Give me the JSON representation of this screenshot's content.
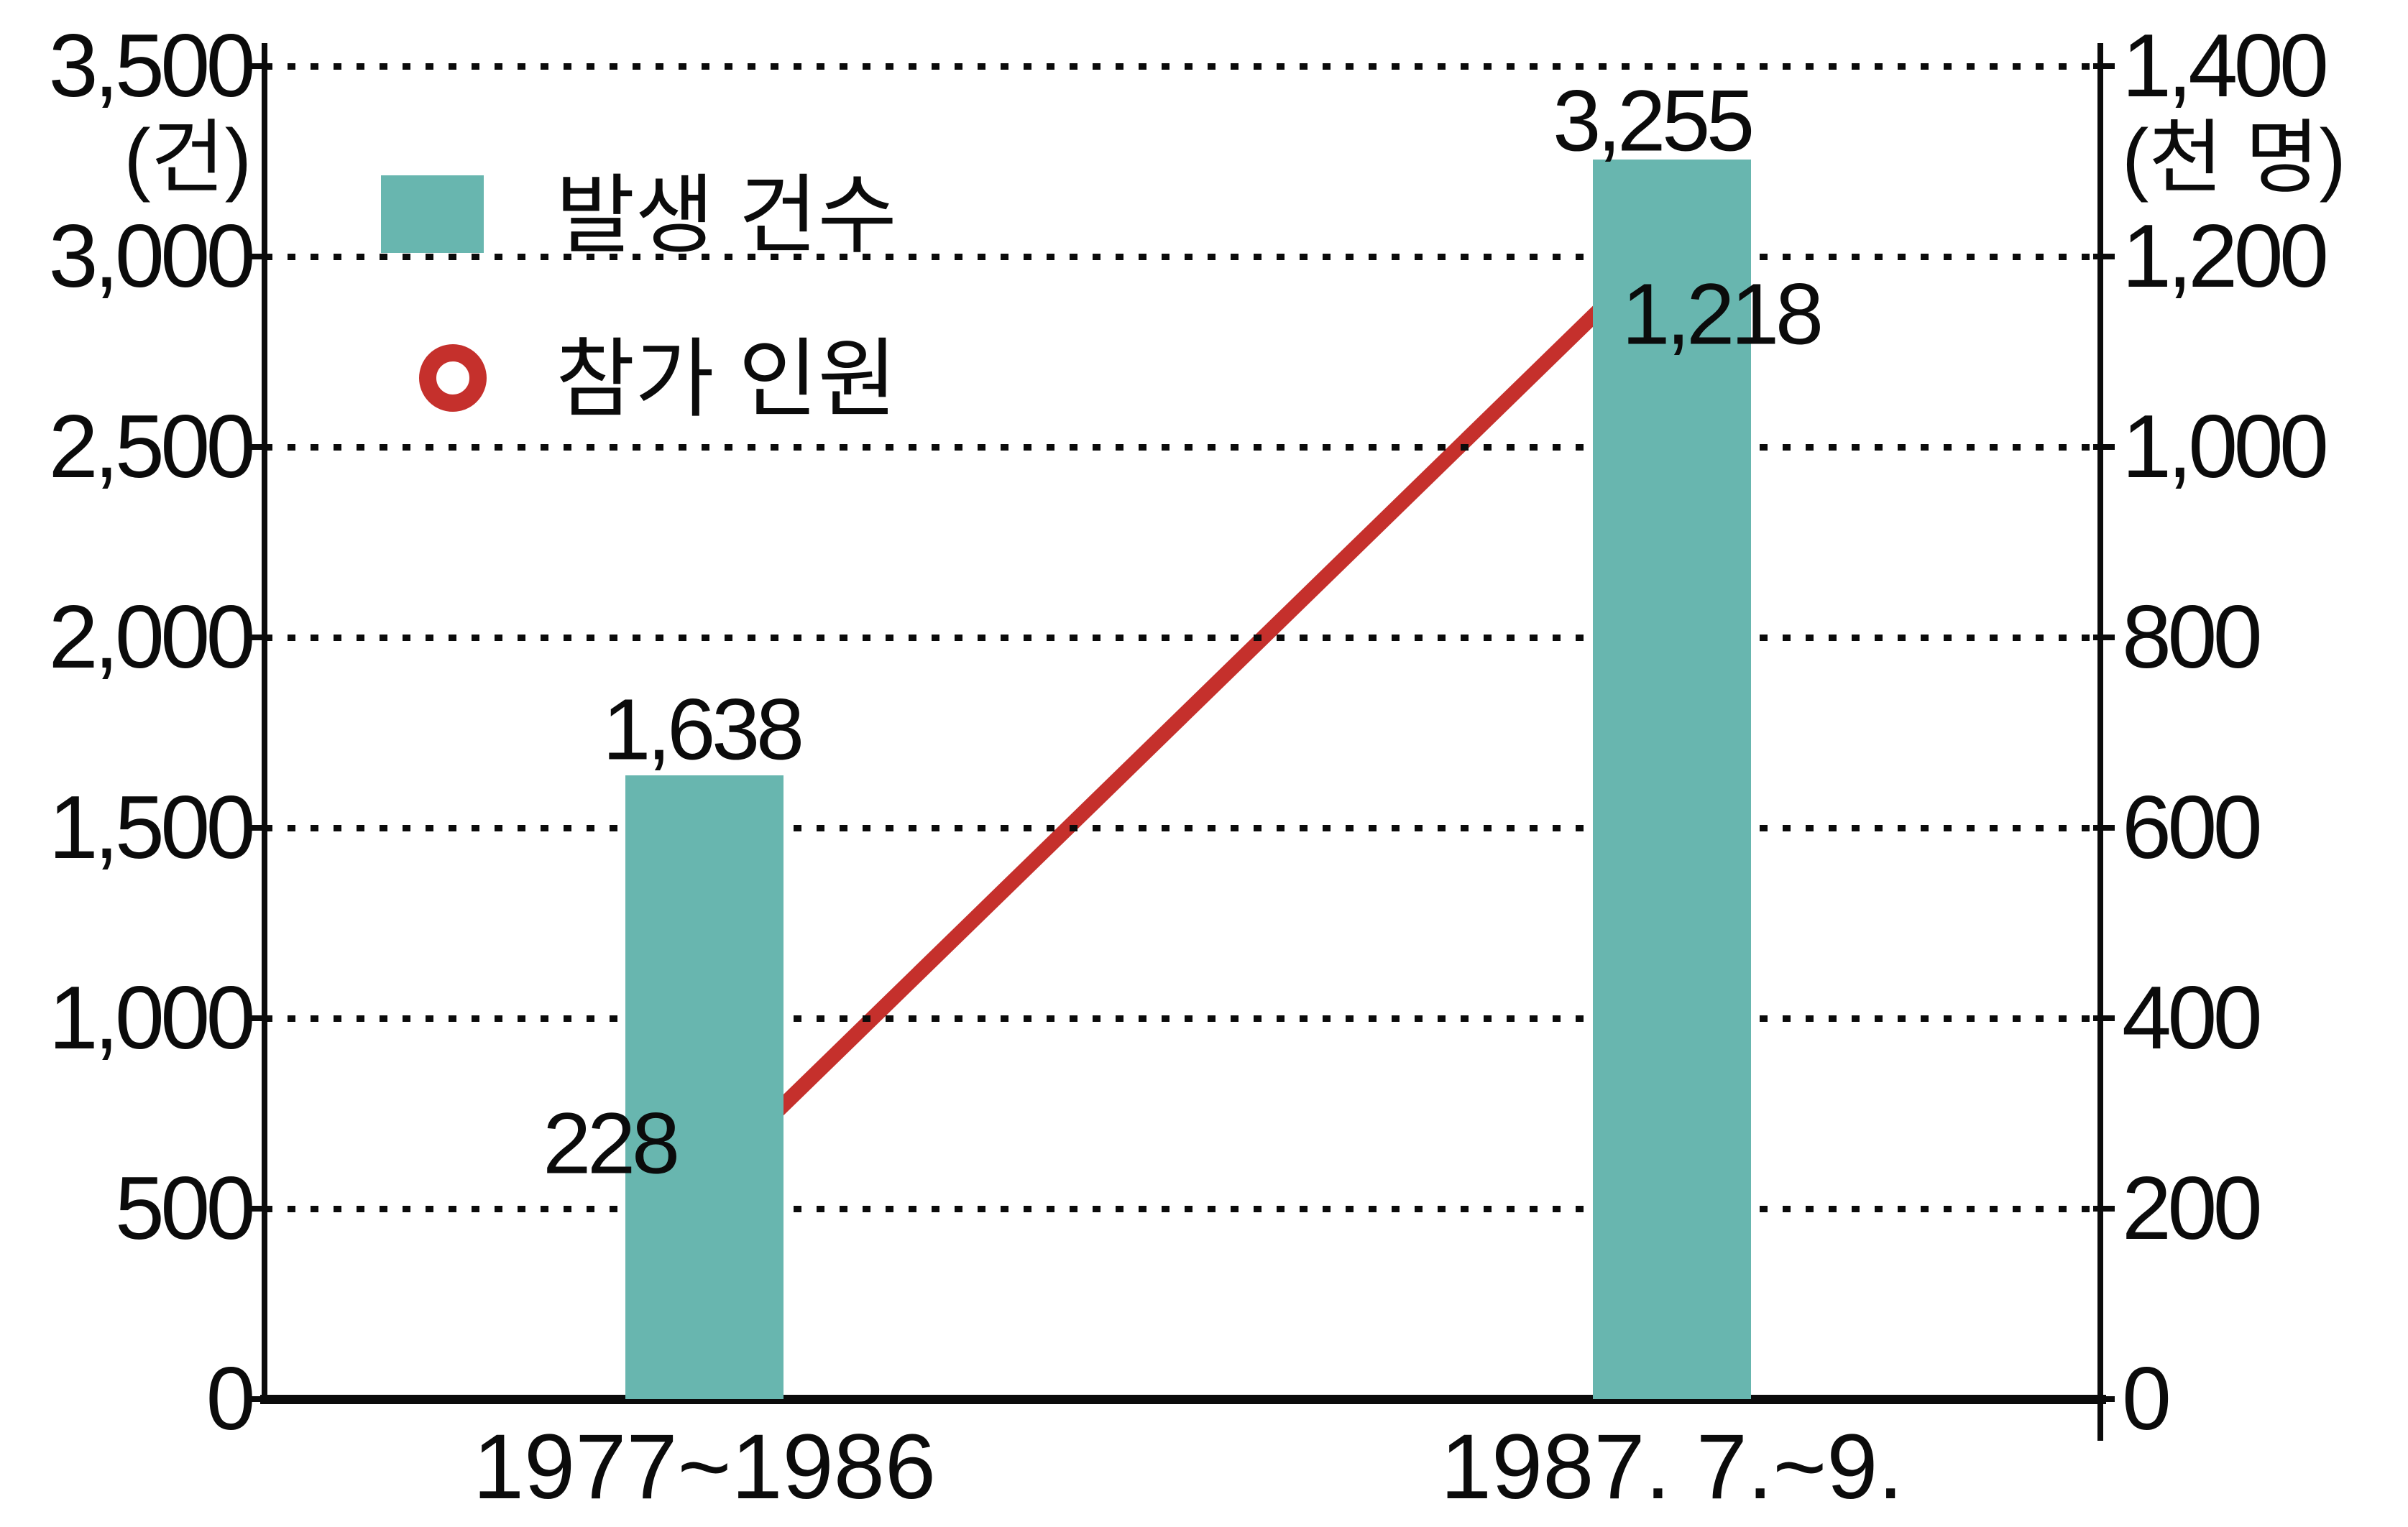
{
  "chart_data": {
    "type": "bar",
    "subtype": "bar-and-line-dual-axis",
    "categories": [
      "1977~1986",
      "1987. 7.~9."
    ],
    "series": [
      {
        "name": "발생 건수",
        "type": "bar",
        "axis": "left",
        "values": [
          1638,
          3255
        ],
        "data_labels": [
          "1,638",
          "3,255"
        ],
        "color": "#68b6af"
      },
      {
        "name": "참가 인원",
        "type": "line",
        "axis": "right",
        "values": [
          228,
          1218
        ],
        "data_labels": [
          "228",
          "1,218"
        ],
        "color": "#c5302c",
        "marker": "open-circle"
      }
    ],
    "left_axis": {
      "unit": "(건)",
      "min": 0,
      "max": 3500,
      "tick_step": 500,
      "tick_labels": [
        "0",
        "500",
        "1,000",
        "1,500",
        "2,000",
        "2,500",
        "3,000",
        "3,500"
      ]
    },
    "right_axis": {
      "unit": "(천 명)",
      "min": 0,
      "max": 1400,
      "tick_step": 200,
      "tick_labels": [
        "0",
        "200",
        "400",
        "600",
        "800",
        "1,000",
        "1,200",
        "1,400"
      ]
    },
    "grid": "horizontal-dotted",
    "legend_position": "top-left",
    "colors": {
      "bar": "#68b6af",
      "line": "#c5302c",
      "text": "#0b0b0b",
      "background": "#ffffff"
    }
  }
}
